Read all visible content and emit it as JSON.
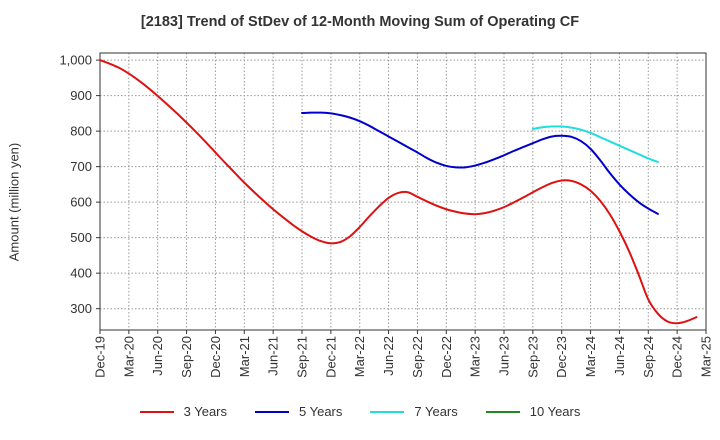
{
  "chart_data": {
    "type": "line",
    "title": "[2183]  Trend of StDev of 12-Month Moving Sum of Operating CF",
    "ylabel": "Amount (million yen)",
    "xlabel": "",
    "ylim": [
      240,
      1020
    ],
    "yticks": [
      300,
      400,
      500,
      600,
      700,
      800,
      900,
      1000
    ],
    "ytick_labels": [
      "300",
      "400",
      "500",
      "600",
      "700",
      "800",
      "900",
      "1,000"
    ],
    "xtick_labels": [
      "Dec-19",
      "Mar-20",
      "Jun-20",
      "Sep-20",
      "Dec-20",
      "Mar-21",
      "Jun-21",
      "Sep-21",
      "Dec-21",
      "Mar-22",
      "Jun-22",
      "Sep-22",
      "Dec-22",
      "Mar-23",
      "Jun-23",
      "Sep-23",
      "Dec-23",
      "Mar-24",
      "Jun-24",
      "Sep-24",
      "Dec-24",
      "Mar-25"
    ],
    "grid": true,
    "legend_position": "bottom",
    "series": [
      {
        "name": "3 Years",
        "color": "#dd1111",
        "values": [
          [
            "Dec-19",
            1000
          ],
          [
            "Jan-20",
            990
          ],
          [
            "Feb-20",
            978
          ],
          [
            "Mar-20",
            962
          ],
          [
            "Apr-20",
            943
          ],
          [
            "May-20",
            922
          ],
          [
            "Jun-20",
            899
          ],
          [
            "Jul-20",
            875
          ],
          [
            "Aug-20",
            850
          ],
          [
            "Sep-20",
            824
          ],
          [
            "Oct-20",
            797
          ],
          [
            "Nov-20",
            769
          ],
          [
            "Dec-20",
            740
          ],
          [
            "Jan-21",
            711
          ],
          [
            "Feb-21",
            683
          ],
          [
            "Mar-21",
            655
          ],
          [
            "Apr-21",
            629
          ],
          [
            "May-21",
            604
          ],
          [
            "Jun-21",
            580
          ],
          [
            "Jul-21",
            558
          ],
          [
            "Aug-21",
            537
          ],
          [
            "Sep-21",
            518
          ],
          [
            "Oct-21",
            502
          ],
          [
            "Nov-21",
            490
          ],
          [
            "Dec-21",
            484
          ],
          [
            "Jan-22",
            488
          ],
          [
            "Feb-22",
            504
          ],
          [
            "Mar-22",
            530
          ],
          [
            "Apr-22",
            560
          ],
          [
            "May-22",
            588
          ],
          [
            "Jun-22",
            612
          ],
          [
            "Jul-22",
            626
          ],
          [
            "Aug-22",
            628
          ],
          [
            "Sep-22",
            615
          ],
          [
            "Oct-22",
            602
          ],
          [
            "Nov-22",
            590
          ],
          [
            "Dec-22",
            580
          ],
          [
            "Jan-23",
            573
          ],
          [
            "Feb-23",
            568
          ],
          [
            "Mar-23",
            566
          ],
          [
            "Apr-23",
            569
          ],
          [
            "May-23",
            576
          ],
          [
            "Jun-23",
            586
          ],
          [
            "Jul-23",
            599
          ],
          [
            "Aug-23",
            613
          ],
          [
            "Sep-23",
            628
          ],
          [
            "Oct-23",
            642
          ],
          [
            "Nov-23",
            654
          ],
          [
            "Dec-23",
            661
          ],
          [
            "Jan-24",
            660
          ],
          [
            "Feb-24",
            650
          ],
          [
            "Mar-24",
            632
          ],
          [
            "Apr-24",
            604
          ],
          [
            "May-24",
            566
          ],
          [
            "Jun-24",
            518
          ],
          [
            "Jul-24",
            462
          ],
          [
            "Aug-24",
            396
          ],
          [
            "Sep-24",
            326
          ],
          [
            "Oct-24",
            286
          ],
          [
            "Nov-24",
            264
          ],
          [
            "Dec-24",
            259
          ],
          [
            "Jan-25",
            265
          ],
          [
            "Feb-25",
            276
          ]
        ]
      },
      {
        "name": "5 Years",
        "color": "#0000cc",
        "values": [
          [
            "Sep-21",
            851
          ],
          [
            "Oct-21",
            852
          ],
          [
            "Nov-21",
            852
          ],
          [
            "Dec-21",
            850
          ],
          [
            "Jan-22",
            845
          ],
          [
            "Feb-22",
            838
          ],
          [
            "Mar-22",
            828
          ],
          [
            "Apr-22",
            815
          ],
          [
            "May-22",
            800
          ],
          [
            "Jun-22",
            785
          ],
          [
            "Jul-22",
            770
          ],
          [
            "Aug-22",
            755
          ],
          [
            "Sep-22",
            740
          ],
          [
            "Oct-22",
            724
          ],
          [
            "Nov-22",
            711
          ],
          [
            "Dec-22",
            702
          ],
          [
            "Jan-23",
            698
          ],
          [
            "Feb-23",
            698
          ],
          [
            "Mar-23",
            703
          ],
          [
            "Apr-23",
            711
          ],
          [
            "May-23",
            721
          ],
          [
            "Jun-23",
            732
          ],
          [
            "Jul-23",
            744
          ],
          [
            "Aug-23",
            755
          ],
          [
            "Sep-23",
            766
          ],
          [
            "Oct-23",
            777
          ],
          [
            "Nov-23",
            785
          ],
          [
            "Dec-23",
            787
          ],
          [
            "Jan-24",
            784
          ],
          [
            "Feb-24",
            772
          ],
          [
            "Mar-24",
            750
          ],
          [
            "Apr-24",
            718
          ],
          [
            "May-24",
            682
          ],
          [
            "Jun-24",
            650
          ],
          [
            "Jul-24",
            623
          ],
          [
            "Aug-24",
            600
          ],
          [
            "Sep-24",
            582
          ],
          [
            "Oct-24",
            567
          ]
        ]
      },
      {
        "name": "7 Years",
        "color": "#22dddd",
        "values": [
          [
            "Sep-23",
            806
          ],
          [
            "Oct-23",
            811
          ],
          [
            "Nov-23",
            813
          ],
          [
            "Dec-23",
            813
          ],
          [
            "Jan-24",
            810
          ],
          [
            "Feb-24",
            804
          ],
          [
            "Mar-24",
            795
          ],
          [
            "Apr-24",
            783
          ],
          [
            "May-24",
            771
          ],
          [
            "Jun-24",
            759
          ],
          [
            "Jul-24",
            747
          ],
          [
            "Aug-24",
            735
          ],
          [
            "Sep-24",
            723
          ],
          [
            "Oct-24",
            713
          ]
        ]
      },
      {
        "name": "10 Years",
        "color": "#228822",
        "values": []
      }
    ]
  }
}
